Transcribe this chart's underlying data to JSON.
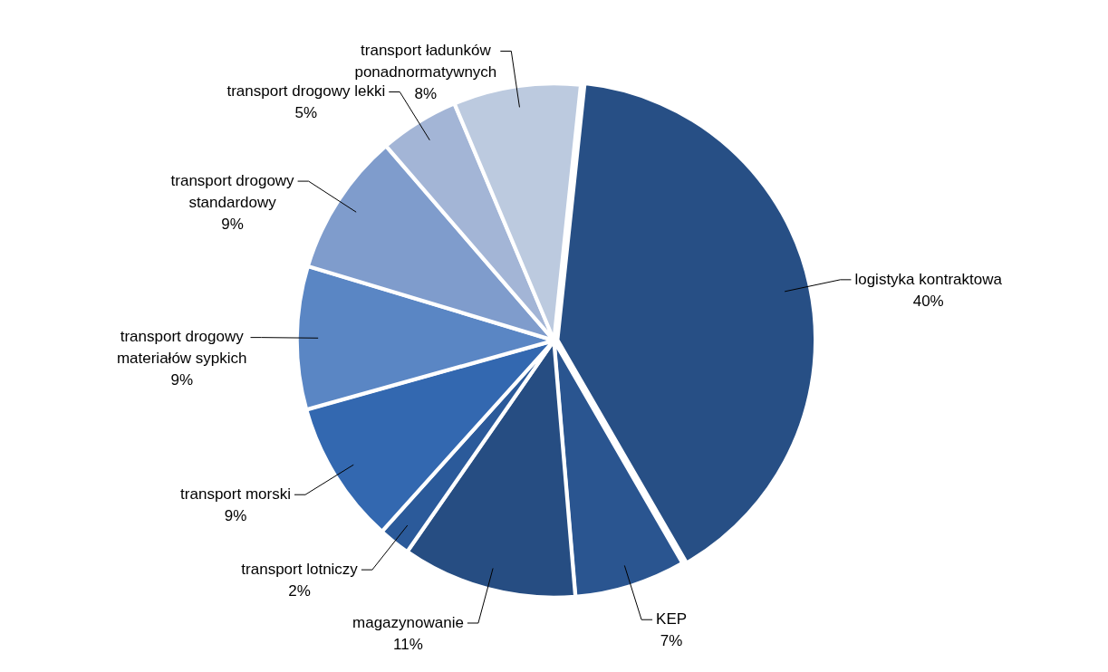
{
  "chart_data": {
    "type": "pie",
    "categories": [
      "logistyka kontraktowa",
      "KEP",
      "magazynowanie",
      "transport lotniczy",
      "transport morski",
      "transport drogowy materiałów sypkich",
      "transport drogowy standardowy",
      "transport drogowy lekki",
      "transport ładunków ponadnormatywnych"
    ],
    "values": [
      40,
      7,
      11,
      2,
      9,
      9,
      9,
      5,
      8
    ],
    "value_labels": [
      "40%",
      "7%",
      "11%",
      "2%",
      "9%",
      "9%",
      "9%",
      "5%",
      "8%"
    ],
    "colors": [
      "#274f85",
      "#2a5590",
      "#264d82",
      "#2b5a9a",
      "#3368b0",
      "#5a86c4",
      "#7f9ccc",
      "#a3b5d6",
      "#bccadf"
    ],
    "legend": false
  }
}
